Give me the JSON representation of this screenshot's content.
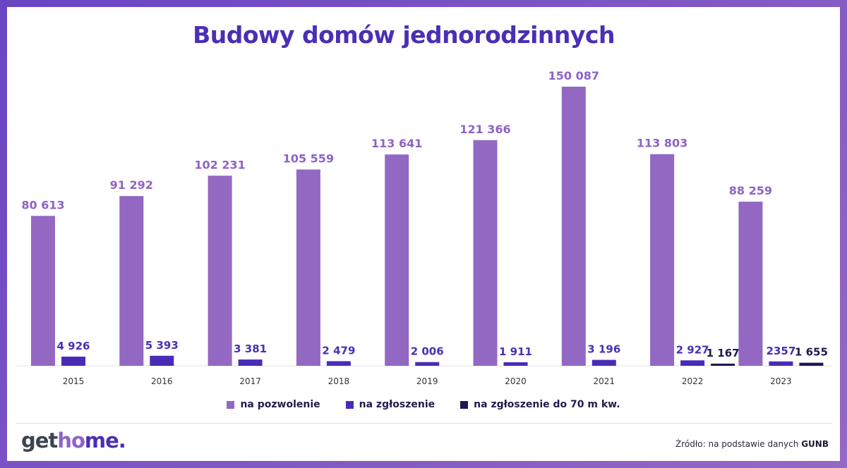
{
  "chart_data": {
    "type": "bar",
    "title": "Budowy domów jednorodzinnych",
    "categories": [
      "2015",
      "2016",
      "2017",
      "2018",
      "2019",
      "2020",
      "2021",
      "2022",
      "2023"
    ],
    "series": [
      {
        "name": "na pozwolenie",
        "color": "#9368c2",
        "values": [
          80613,
          91292,
          102231,
          105559,
          113641,
          121366,
          150087,
          113803,
          88259
        ],
        "labels": [
          "80 613",
          "91 292",
          "102 231",
          "105 559",
          "113 641",
          "121 366",
          "150 087",
          "113 803",
          "88 259"
        ]
      },
      {
        "name": "na zgłoszenie",
        "color": "#4a2bb8",
        "values": [
          4926,
          5393,
          3381,
          2479,
          2006,
          1911,
          3196,
          2927,
          2357
        ],
        "labels": [
          "4 926",
          "5 393",
          "3 381",
          "2 479",
          "2 006",
          "1 911",
          "3 196",
          "2 927",
          "2357"
        ]
      },
      {
        "name": "na zgłoszenie do 70 m kw.",
        "color": "#1f1852",
        "values": [
          null,
          null,
          null,
          null,
          null,
          null,
          null,
          1167,
          1655
        ],
        "labels": [
          "",
          "",
          "",
          "",
          "",
          "",
          "",
          "1 167",
          "1 655"
        ]
      }
    ],
    "ylim": [
      0,
      150087
    ],
    "grid": false,
    "legend": "bottom"
  },
  "brand": {
    "logo_part1": "get",
    "logo_part2": "ho",
    "logo_part3": "me."
  },
  "source": {
    "prefix": "Źródło: na podstawie danych",
    "name": "GUNB"
  }
}
